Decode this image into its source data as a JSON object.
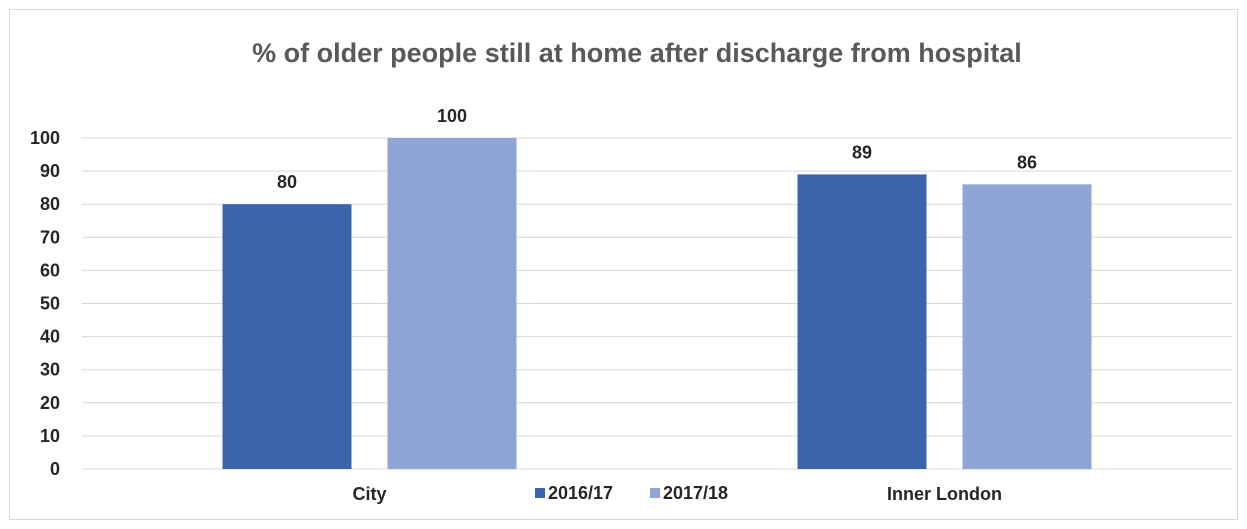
{
  "chart_data": {
    "type": "bar",
    "title": "% of older people still at home after discharge from hospital",
    "categories": [
      "City",
      "Inner London"
    ],
    "series": [
      {
        "name": "2016/17",
        "values": [
          80,
          89
        ],
        "color": "#3c64ac"
      },
      {
        "name": "2017/18",
        "values": [
          100,
          86
        ],
        "color": "#8fa5d5"
      }
    ],
    "ylim": [
      0,
      100
    ],
    "yticks": [
      "0",
      "10",
      "20",
      "30",
      "40",
      "50",
      "60",
      "70",
      "80",
      "90",
      "100"
    ],
    "grid": true,
    "legend": "bottom",
    "data_labels": true,
    "gridline_color": "#d9d9d9"
  }
}
